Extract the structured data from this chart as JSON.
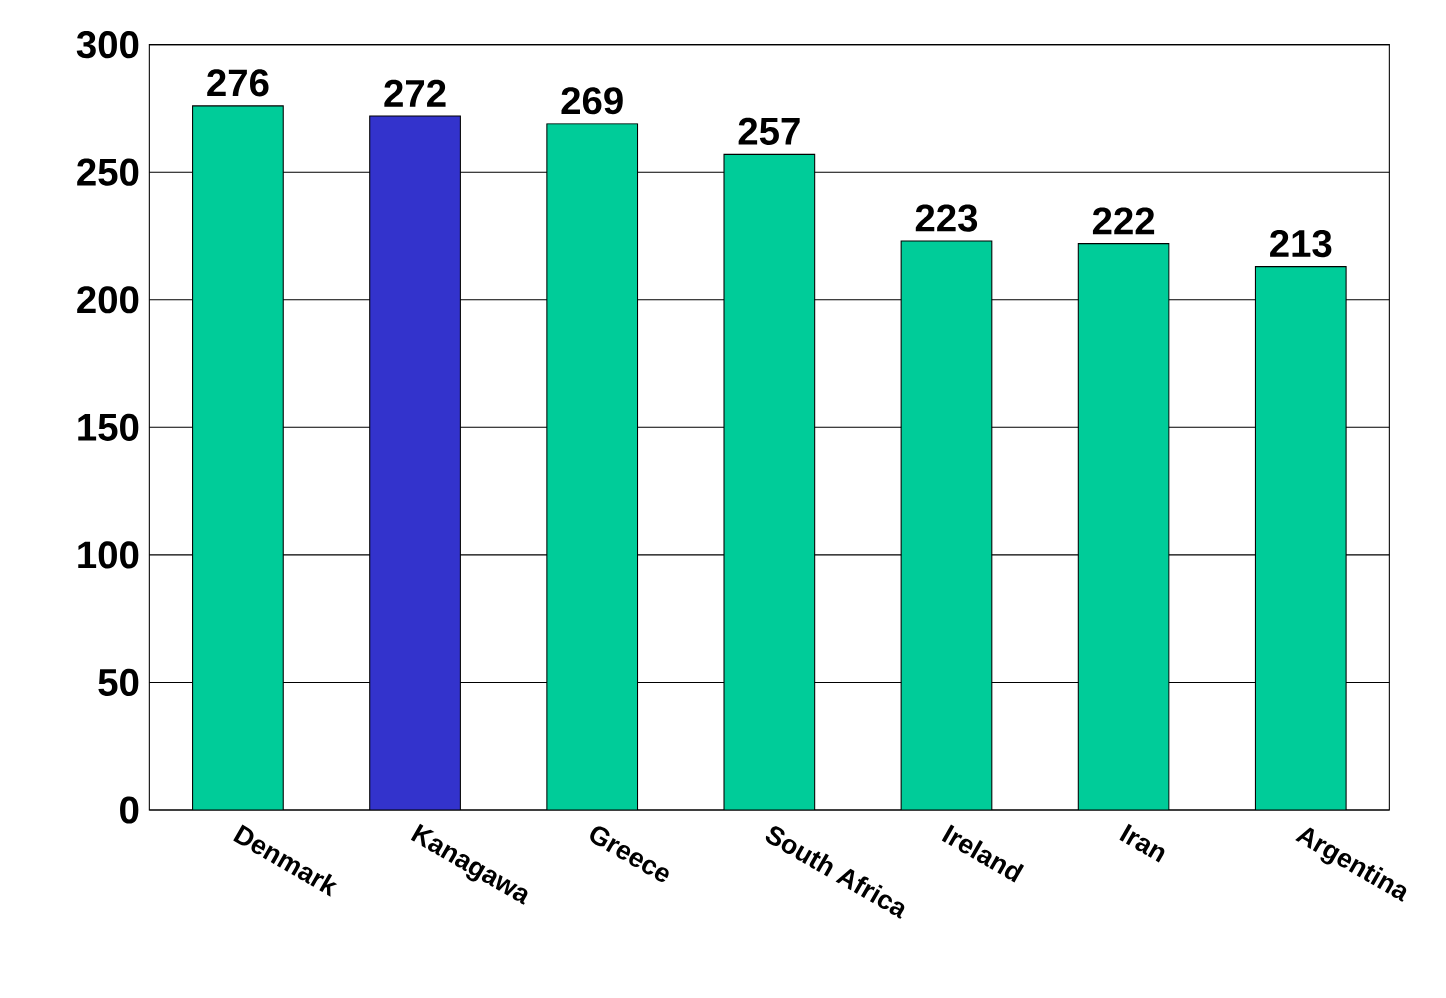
{
  "chart_data": {
    "type": "bar",
    "categories": [
      "Denmark",
      "Kanagawa",
      "Greece",
      "South Africa",
      "Ireland",
      "Iran",
      "Argentina"
    ],
    "values": [
      276,
      272,
      269,
      257,
      223,
      222,
      213
    ],
    "colors": [
      "#00cc99",
      "#3333cc",
      "#00cc99",
      "#00cc99",
      "#00cc99",
      "#00cc99",
      "#00cc99"
    ],
    "ylim": [
      0,
      300
    ],
    "yticks": [
      0,
      50,
      100,
      150,
      200,
      250,
      300
    ],
    "grid": "y",
    "data_labels": true
  }
}
